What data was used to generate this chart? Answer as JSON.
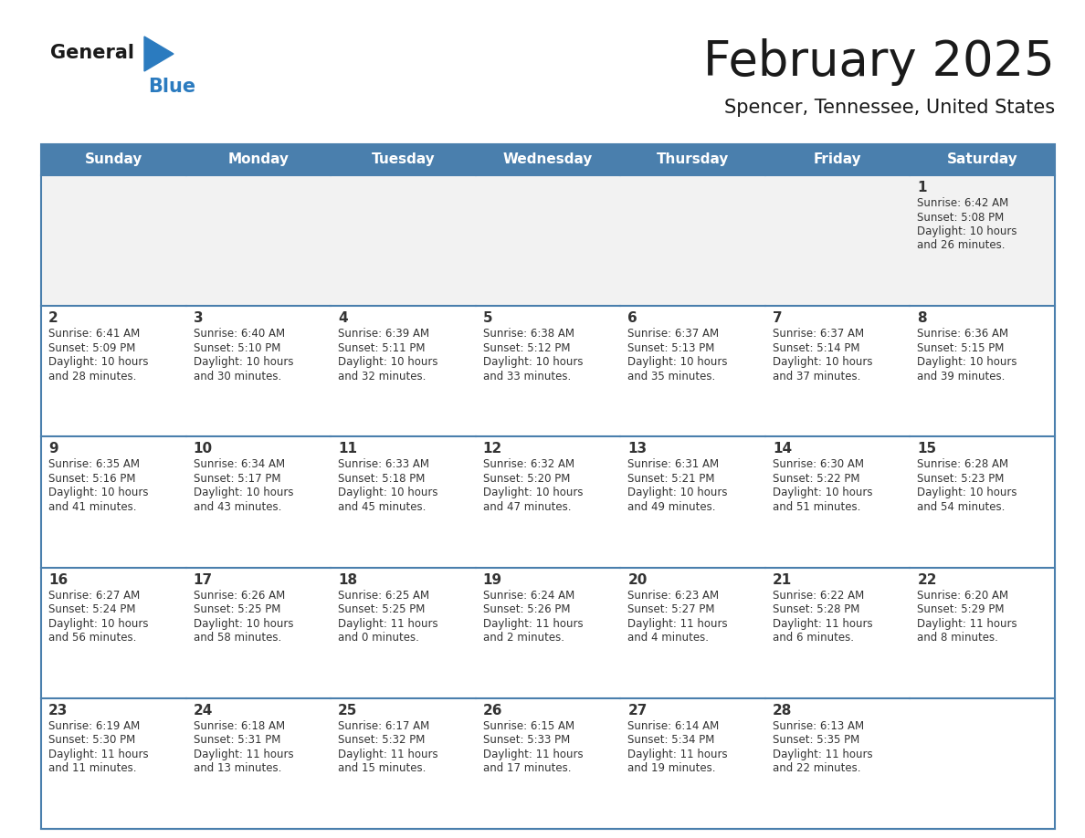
{
  "title": "February 2025",
  "subtitle": "Spencer, Tennessee, United States",
  "days_of_week": [
    "Sunday",
    "Monday",
    "Tuesday",
    "Wednesday",
    "Thursday",
    "Friday",
    "Saturday"
  ],
  "header_bg": "#4a7fad",
  "header_text": "#ffffff",
  "cell_bg_gray": "#f2f2f2",
  "cell_bg_white": "#ffffff",
  "line_color": "#4a7fad",
  "text_color": "#333333",
  "title_color": "#1a1a1a",
  "logo_general_color": "#1a1a1a",
  "logo_blue_color": "#2b7bbf",
  "logo_triangle_color": "#2b7bbf",
  "calendar_data": [
    [
      null,
      null,
      null,
      null,
      null,
      null,
      {
        "day": 1,
        "sunrise": "6:42 AM",
        "sunset": "5:08 PM",
        "daylight_line1": "Daylight: 10 hours",
        "daylight_line2": "and 26 minutes."
      }
    ],
    [
      {
        "day": 2,
        "sunrise": "6:41 AM",
        "sunset": "5:09 PM",
        "daylight_line1": "Daylight: 10 hours",
        "daylight_line2": "and 28 minutes."
      },
      {
        "day": 3,
        "sunrise": "6:40 AM",
        "sunset": "5:10 PM",
        "daylight_line1": "Daylight: 10 hours",
        "daylight_line2": "and 30 minutes."
      },
      {
        "day": 4,
        "sunrise": "6:39 AM",
        "sunset": "5:11 PM",
        "daylight_line1": "Daylight: 10 hours",
        "daylight_line2": "and 32 minutes."
      },
      {
        "day": 5,
        "sunrise": "6:38 AM",
        "sunset": "5:12 PM",
        "daylight_line1": "Daylight: 10 hours",
        "daylight_line2": "and 33 minutes."
      },
      {
        "day": 6,
        "sunrise": "6:37 AM",
        "sunset": "5:13 PM",
        "daylight_line1": "Daylight: 10 hours",
        "daylight_line2": "and 35 minutes."
      },
      {
        "day": 7,
        "sunrise": "6:37 AM",
        "sunset": "5:14 PM",
        "daylight_line1": "Daylight: 10 hours",
        "daylight_line2": "and 37 minutes."
      },
      {
        "day": 8,
        "sunrise": "6:36 AM",
        "sunset": "5:15 PM",
        "daylight_line1": "Daylight: 10 hours",
        "daylight_line2": "and 39 minutes."
      }
    ],
    [
      {
        "day": 9,
        "sunrise": "6:35 AM",
        "sunset": "5:16 PM",
        "daylight_line1": "Daylight: 10 hours",
        "daylight_line2": "and 41 minutes."
      },
      {
        "day": 10,
        "sunrise": "6:34 AM",
        "sunset": "5:17 PM",
        "daylight_line1": "Daylight: 10 hours",
        "daylight_line2": "and 43 minutes."
      },
      {
        "day": 11,
        "sunrise": "6:33 AM",
        "sunset": "5:18 PM",
        "daylight_line1": "Daylight: 10 hours",
        "daylight_line2": "and 45 minutes."
      },
      {
        "day": 12,
        "sunrise": "6:32 AM",
        "sunset": "5:20 PM",
        "daylight_line1": "Daylight: 10 hours",
        "daylight_line2": "and 47 minutes."
      },
      {
        "day": 13,
        "sunrise": "6:31 AM",
        "sunset": "5:21 PM",
        "daylight_line1": "Daylight: 10 hours",
        "daylight_line2": "and 49 minutes."
      },
      {
        "day": 14,
        "sunrise": "6:30 AM",
        "sunset": "5:22 PM",
        "daylight_line1": "Daylight: 10 hours",
        "daylight_line2": "and 51 minutes."
      },
      {
        "day": 15,
        "sunrise": "6:28 AM",
        "sunset": "5:23 PM",
        "daylight_line1": "Daylight: 10 hours",
        "daylight_line2": "and 54 minutes."
      }
    ],
    [
      {
        "day": 16,
        "sunrise": "6:27 AM",
        "sunset": "5:24 PM",
        "daylight_line1": "Daylight: 10 hours",
        "daylight_line2": "and 56 minutes."
      },
      {
        "day": 17,
        "sunrise": "6:26 AM",
        "sunset": "5:25 PM",
        "daylight_line1": "Daylight: 10 hours",
        "daylight_line2": "and 58 minutes."
      },
      {
        "day": 18,
        "sunrise": "6:25 AM",
        "sunset": "5:25 PM",
        "daylight_line1": "Daylight: 11 hours",
        "daylight_line2": "and 0 minutes."
      },
      {
        "day": 19,
        "sunrise": "6:24 AM",
        "sunset": "5:26 PM",
        "daylight_line1": "Daylight: 11 hours",
        "daylight_line2": "and 2 minutes."
      },
      {
        "day": 20,
        "sunrise": "6:23 AM",
        "sunset": "5:27 PM",
        "daylight_line1": "Daylight: 11 hours",
        "daylight_line2": "and 4 minutes."
      },
      {
        "day": 21,
        "sunrise": "6:22 AM",
        "sunset": "5:28 PM",
        "daylight_line1": "Daylight: 11 hours",
        "daylight_line2": "and 6 minutes."
      },
      {
        "day": 22,
        "sunrise": "6:20 AM",
        "sunset": "5:29 PM",
        "daylight_line1": "Daylight: 11 hours",
        "daylight_line2": "and 8 minutes."
      }
    ],
    [
      {
        "day": 23,
        "sunrise": "6:19 AM",
        "sunset": "5:30 PM",
        "daylight_line1": "Daylight: 11 hours",
        "daylight_line2": "and 11 minutes."
      },
      {
        "day": 24,
        "sunrise": "6:18 AM",
        "sunset": "5:31 PM",
        "daylight_line1": "Daylight: 11 hours",
        "daylight_line2": "and 13 minutes."
      },
      {
        "day": 25,
        "sunrise": "6:17 AM",
        "sunset": "5:32 PM",
        "daylight_line1": "Daylight: 11 hours",
        "daylight_line2": "and 15 minutes."
      },
      {
        "day": 26,
        "sunrise": "6:15 AM",
        "sunset": "5:33 PM",
        "daylight_line1": "Daylight: 11 hours",
        "daylight_line2": "and 17 minutes."
      },
      {
        "day": 27,
        "sunrise": "6:14 AM",
        "sunset": "5:34 PM",
        "daylight_line1": "Daylight: 11 hours",
        "daylight_line2": "and 19 minutes."
      },
      {
        "day": 28,
        "sunrise": "6:13 AM",
        "sunset": "5:35 PM",
        "daylight_line1": "Daylight: 11 hours",
        "daylight_line2": "and 22 minutes."
      },
      null
    ]
  ]
}
